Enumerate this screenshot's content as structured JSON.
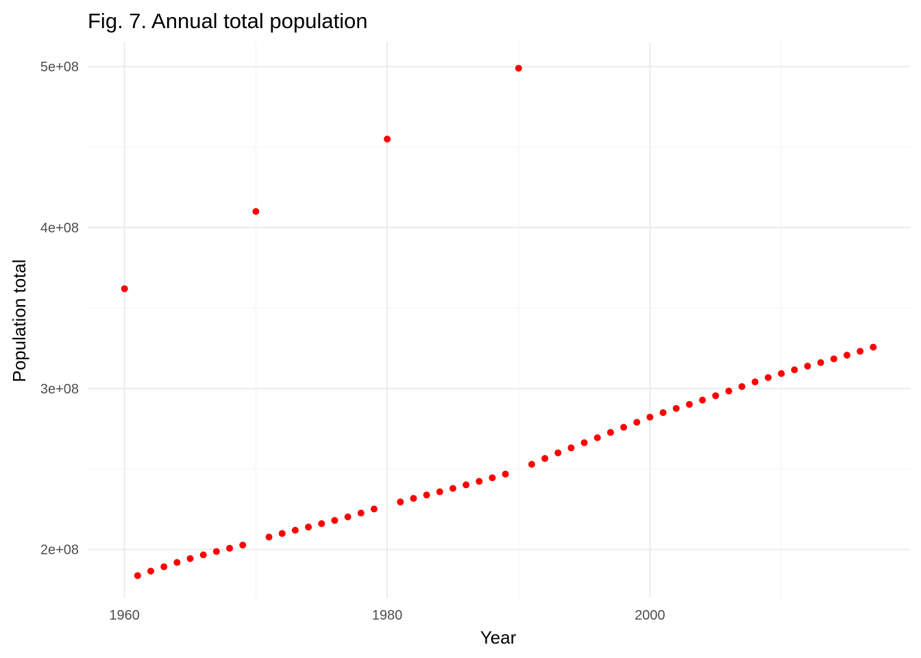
{
  "chart_data": {
    "type": "scatter",
    "title": "Fig. 7. Annual total population",
    "xlabel": "Year",
    "ylabel": "Population total",
    "xlim": [
      1957.2,
      2019.8
    ],
    "ylim": [
      170000000,
      515000000
    ],
    "x_ticks": [
      1960,
      1980,
      2000
    ],
    "x_tick_labels": [
      "1960",
      "1980",
      "2000"
    ],
    "y_ticks": [
      200000000,
      300000000,
      400000000,
      500000000
    ],
    "y_tick_labels": [
      "2e+08",
      "3e+08",
      "4e+08",
      "5e+08"
    ],
    "grid": true,
    "point_color": "#ff0000",
    "series": [
      {
        "x": [
          1960,
          1961,
          1962,
          1963,
          1964,
          1965,
          1966,
          1967,
          1968,
          1969,
          1970,
          1971,
          1972,
          1973,
          1974,
          1975,
          1976,
          1977,
          1978,
          1979,
          1980,
          1981,
          1982,
          1983,
          1984,
          1985,
          1986,
          1987,
          1988,
          1989,
          1990,
          1991,
          1992,
          1993,
          1994,
          1995,
          1996,
          1997,
          1998,
          1999,
          2000,
          2001,
          2002,
          2003,
          2004,
          2005,
          2006,
          2007,
          2008,
          2009,
          2010,
          2011,
          2012,
          2013,
          2014,
          2015,
          2016,
          2017
        ],
        "values": [
          362000000,
          183700000,
          186500000,
          189200000,
          191900000,
          194300000,
          196600000,
          198700000,
          200700000,
          202700000,
          410000000,
          207700000,
          209900000,
          211900000,
          213900000,
          216000000,
          218000000,
          220200000,
          222600000,
          225100000,
          455000000,
          229500000,
          231700000,
          233800000,
          235800000,
          237900000,
          240100000,
          242300000,
          244500000,
          246800000,
          499000000,
          252900000,
          256500000,
          260000000,
          263100000,
          266300000,
          269400000,
          272700000,
          275900000,
          279000000,
          282200000,
          285000000,
          287600000,
          290100000,
          292800000,
          295500000,
          298400000,
          301200000,
          304100000,
          306800000,
          309300000,
          311600000,
          313900000,
          316100000,
          318400000,
          320700000,
          323100000,
          325700000
        ]
      }
    ]
  }
}
